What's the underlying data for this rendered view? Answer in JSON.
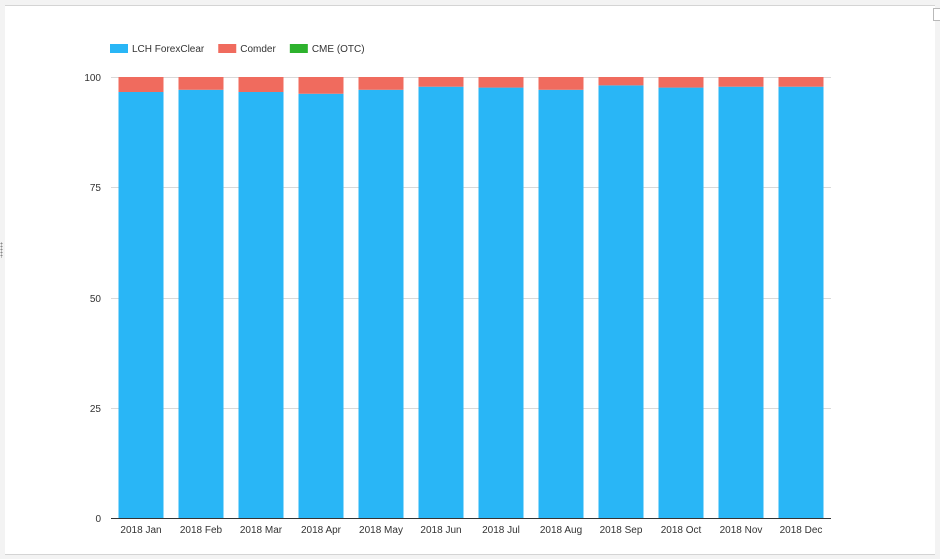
{
  "chart_data": {
    "type": "bar",
    "stacked": true,
    "categories": [
      "2018 Jan",
      "2018 Feb",
      "2018 Mar",
      "2018 Apr",
      "2018 May",
      "2018 Jun",
      "2018 Jul",
      "2018 Aug",
      "2018 Sep",
      "2018 Oct",
      "2018 Nov",
      "2018 Dec"
    ],
    "series": [
      {
        "name": "LCH ForexClear",
        "color": "#29b6f6",
        "values": [
          96.6,
          97.1,
          96.6,
          96.2,
          97.1,
          97.8,
          97.6,
          97.1,
          98.1,
          97.6,
          97.8,
          97.8
        ]
      },
      {
        "name": "Comder",
        "color": "#f06b5e",
        "values": [
          3.4,
          2.9,
          3.4,
          3.8,
          2.9,
          2.2,
          2.4,
          2.9,
          1.9,
          2.4,
          2.2,
          2.2
        ]
      },
      {
        "name": "CME (OTC)",
        "color": "#2db22d",
        "values": [
          0,
          0,
          0,
          0,
          0,
          0,
          0,
          0,
          0,
          0,
          0,
          0
        ]
      }
    ],
    "ylim": [
      0,
      100
    ],
    "yticks": [
      0,
      25,
      50,
      75,
      100
    ],
    "grid": true,
    "legend_position": "top-left",
    "title": "",
    "xlabel": "",
    "ylabel": ""
  }
}
